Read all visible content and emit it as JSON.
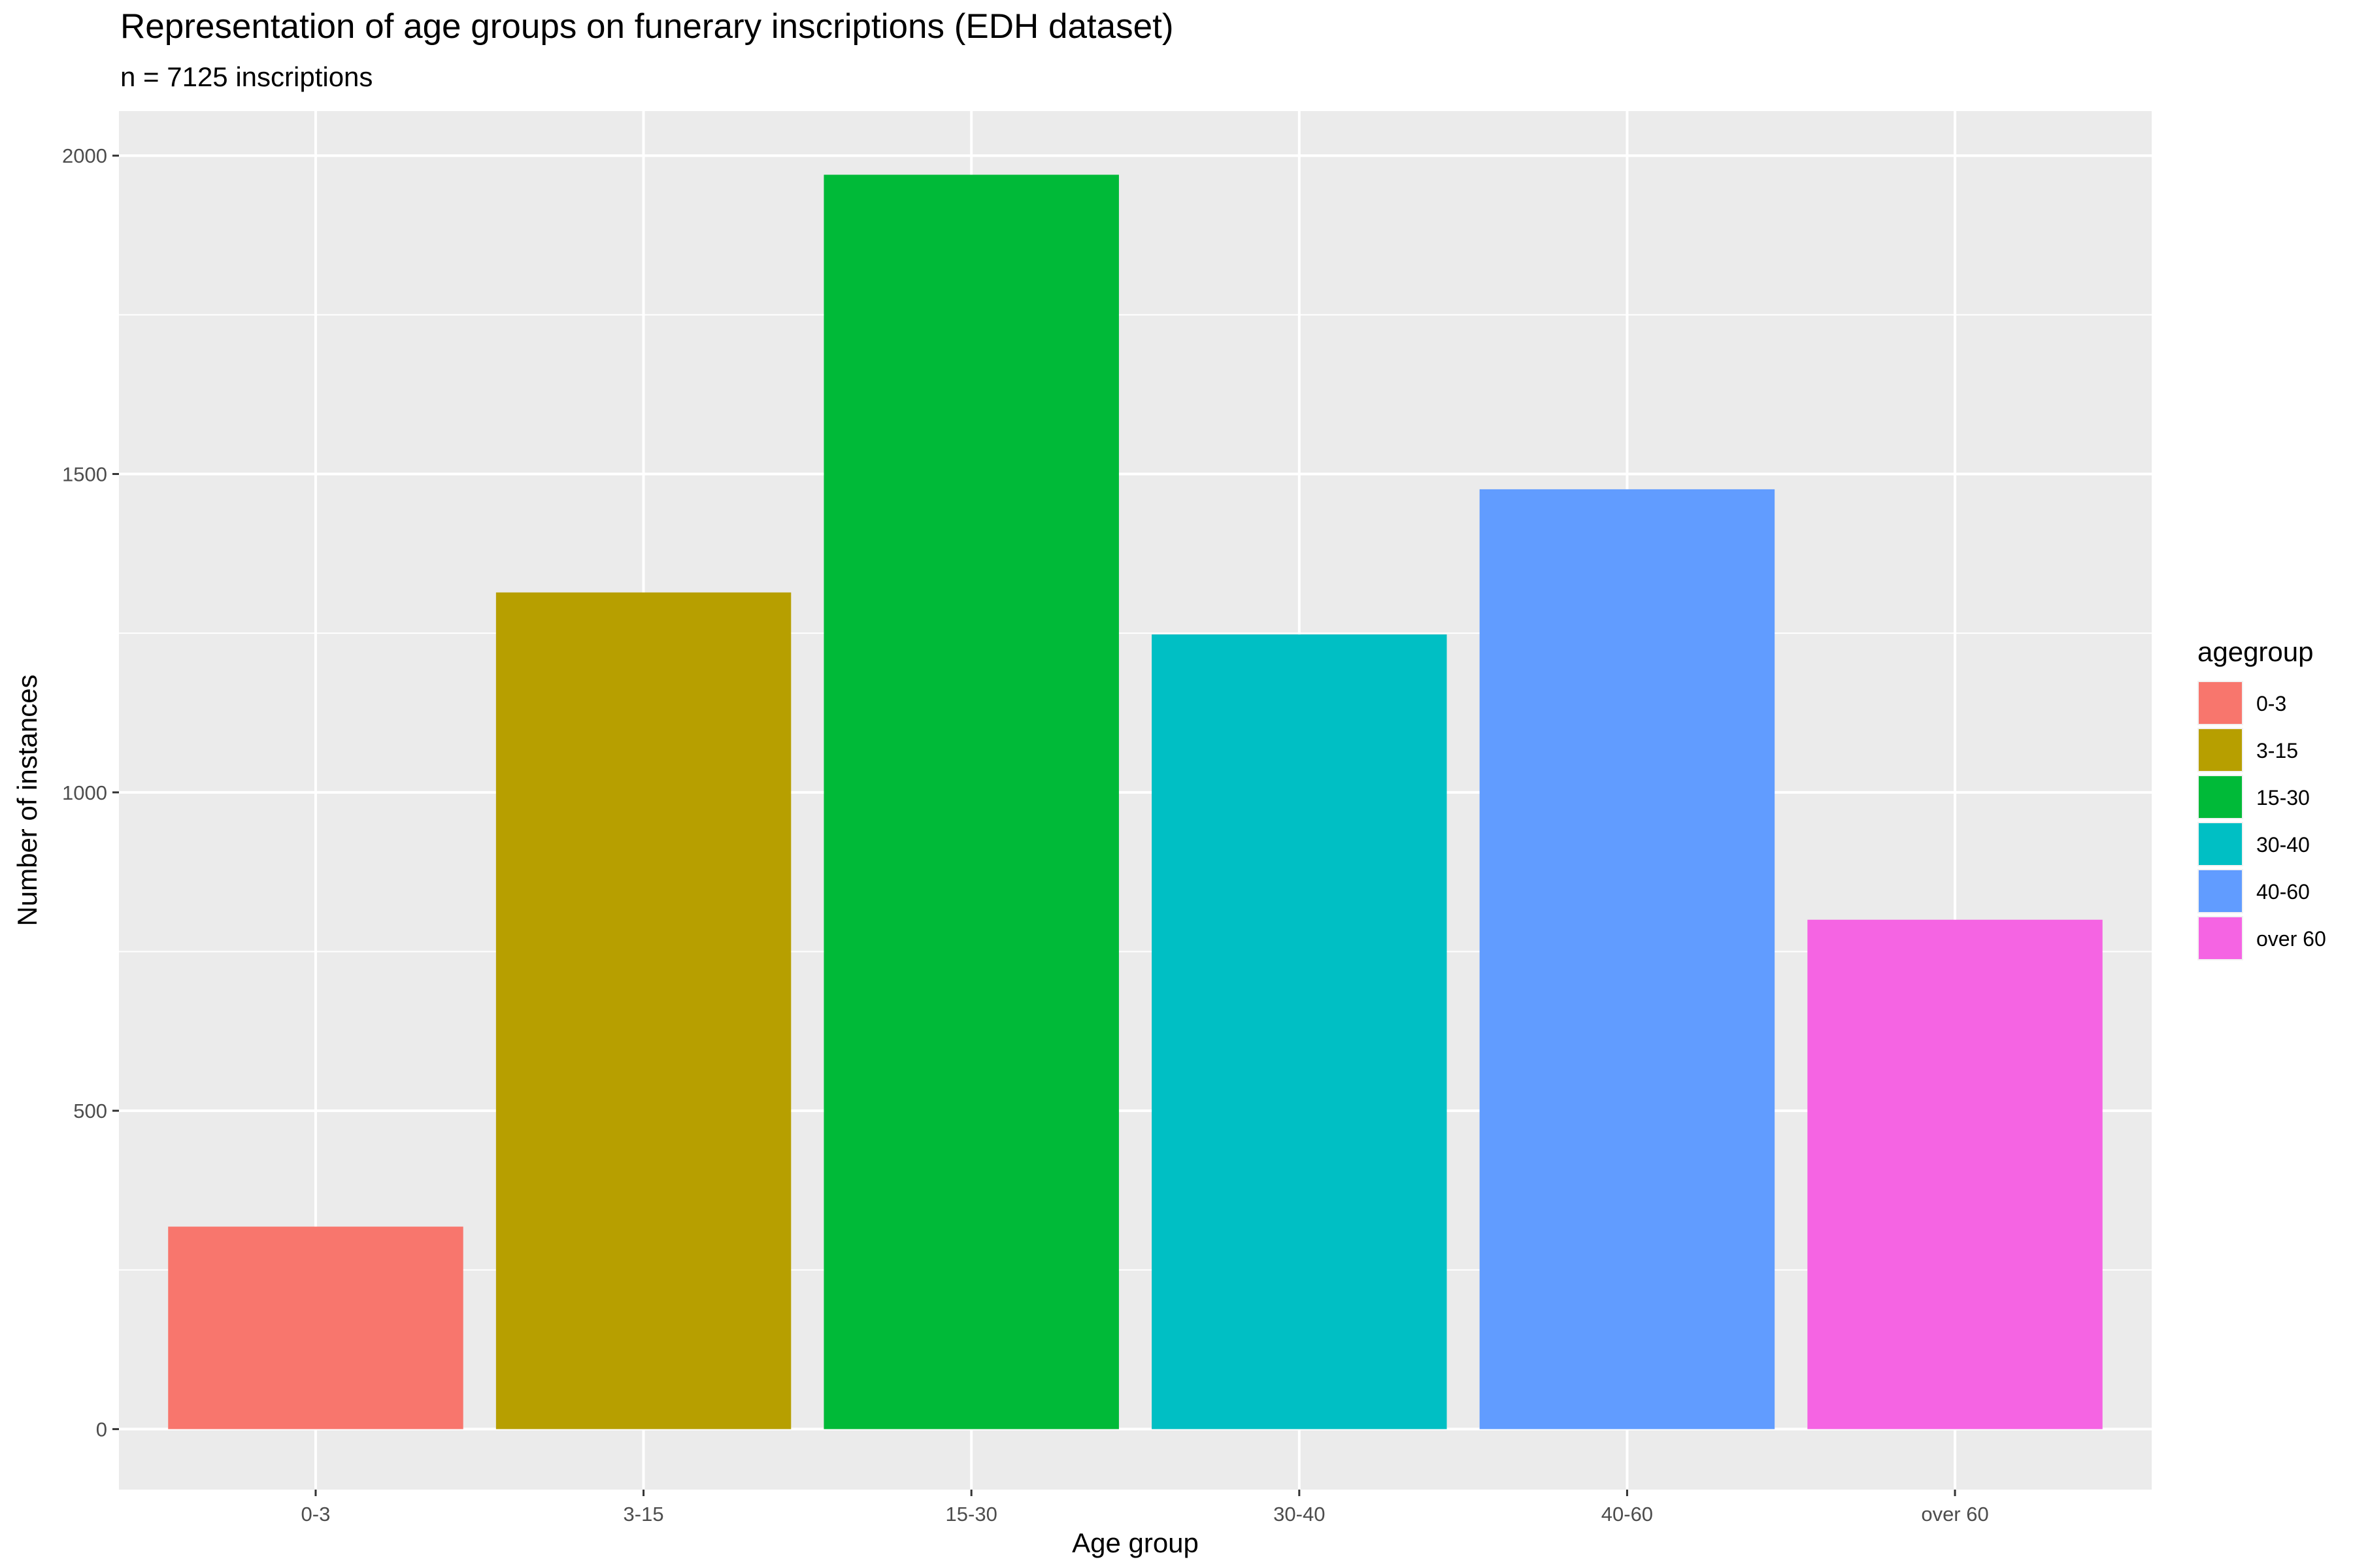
{
  "chart_data": {
    "type": "bar",
    "title": "Representation of age groups on funerary inscriptions (EDH dataset)",
    "subtitle": "n = 7125 inscriptions",
    "xlabel": "Age group",
    "ylabel": "Number of instances",
    "categories": [
      "0-3",
      "3-15",
      "15-30",
      "30-40",
      "40-60",
      "over 60"
    ],
    "values": [
      318,
      1314,
      1970,
      1248,
      1476,
      800
    ],
    "colors": [
      "#F8766D",
      "#B79F00",
      "#00BA38",
      "#00BFC4",
      "#619CFF",
      "#F564E3"
    ],
    "ylim": [
      -95,
      2070
    ],
    "yticks": [
      0,
      500,
      1000,
      1500,
      2000
    ],
    "grid": true,
    "panel_background": "#EBEBEB",
    "legend": {
      "title": "agegroup",
      "position": "right",
      "entries": [
        "0-3",
        "3-15",
        "15-30",
        "30-40",
        "40-60",
        "over 60"
      ]
    }
  }
}
